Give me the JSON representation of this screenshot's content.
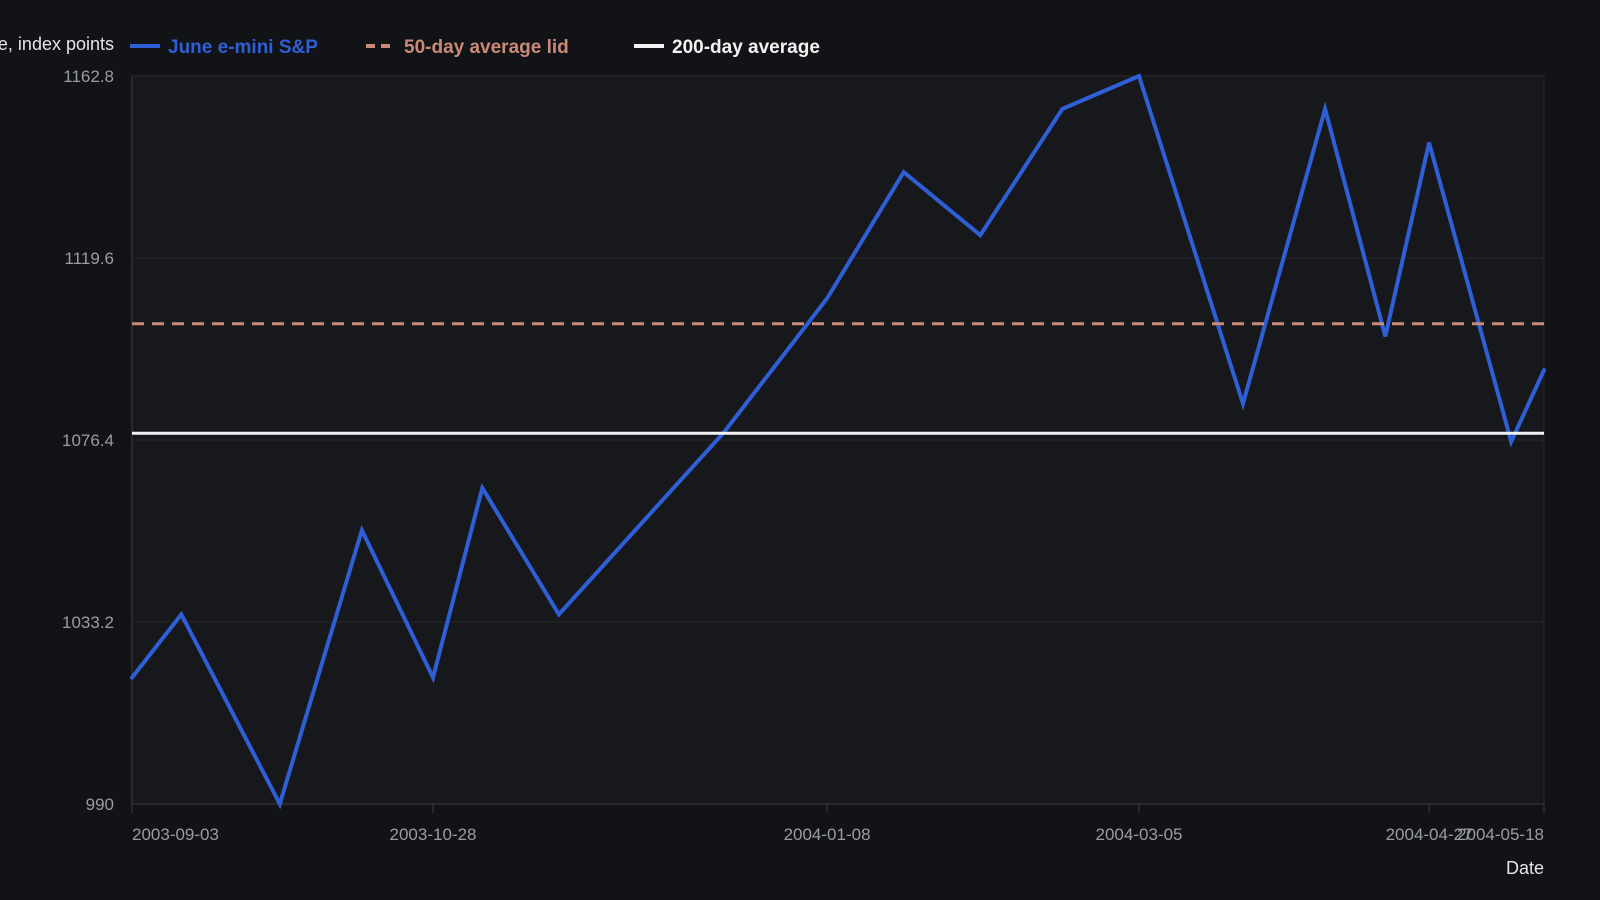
{
  "colors": {
    "background": "#121316",
    "plot_background": "#17181c",
    "grid": "#26282d",
    "axis": "#3a3c42",
    "tick_text": "#9a9ca3",
    "axis_title": "#e4e5e8"
  },
  "chart_data": {
    "type": "line",
    "title": "",
    "xlabel": "Date",
    "ylabel": "Price, index points",
    "ylim": [
      990,
      1162.8
    ],
    "yticks": [
      990,
      1033.2,
      1076.4,
      1119.6,
      1162.8
    ],
    "xlim": [
      "2003-09-03",
      "2004-05-18"
    ],
    "xticks": [
      "2003-09-03",
      "2003-10-28",
      "2004-01-08",
      "2004-03-05",
      "2004-04-27",
      "2004-05-18"
    ],
    "grid": true,
    "legend_position": "top",
    "series": [
      {
        "name": "June e-mini S&P",
        "color": "#2f5fd6",
        "style": "solid",
        "kind": "line",
        "x": [
          "2003-09-03",
          "2003-09-12",
          "2003-09-30",
          "2003-10-15",
          "2003-10-28",
          "2003-11-06",
          "2003-11-20",
          "2003-12-20",
          "2004-01-08",
          "2004-01-22",
          "2004-02-05",
          "2004-02-20",
          "2004-03-05",
          "2004-03-24",
          "2004-04-08",
          "2004-04-19",
          "2004-04-27",
          "2004-05-12",
          "2004-05-18"
        ],
        "y": [
          1020,
          1035,
          990,
          1055,
          1020,
          1065,
          1035,
          1078,
          1110,
          1140,
          1125,
          1155,
          1162.8,
          1085,
          1155,
          1101,
          1147,
          1076,
          1093
        ]
      },
      {
        "name": "50-day average lid",
        "color": "#c98a78",
        "style": "dashed",
        "kind": "hline",
        "value": 1104
      },
      {
        "name": "200-day average",
        "color": "#f2f2f2",
        "style": "solid",
        "kind": "hline",
        "value": 1078
      }
    ]
  }
}
